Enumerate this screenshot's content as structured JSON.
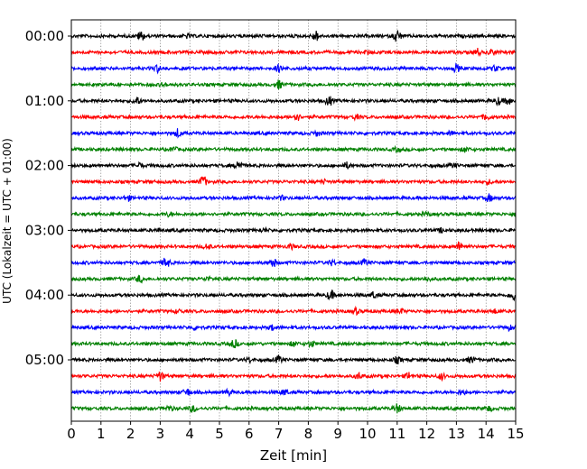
{
  "chart_data": {
    "type": "line",
    "title": "",
    "xlabel": "Zeit  [min]",
    "ylabel": "UTC (Lokalzeit = UTC + 01:00)",
    "xlim": [
      0,
      15
    ],
    "x_ticks": [
      0,
      1,
      2,
      3,
      4,
      5,
      6,
      7,
      8,
      9,
      10,
      11,
      12,
      13,
      14,
      15
    ],
    "x_tick_labels": [
      "0",
      "1",
      "2",
      "3",
      "4",
      "5",
      "6",
      "7",
      "8",
      "9",
      "10",
      "11",
      "12",
      "13",
      "14",
      "15"
    ],
    "y_tick_labels": [
      "00:00",
      "01:00",
      "02:00",
      "03:00",
      "04:00",
      "05:00"
    ],
    "grid": "vertical dotted",
    "trace_interval_min": 15,
    "trace_count": 24,
    "trace_colors": [
      "#000000",
      "#ff0000",
      "#0000ff",
      "#008000"
    ],
    "traces": [
      {
        "start": "00:00",
        "events": [
          [
            2.35,
            0.8
          ],
          [
            8.25,
            0.9
          ],
          [
            11.0,
            1.1
          ],
          [
            3.9,
            0.3
          ]
        ]
      },
      {
        "start": "00:15",
        "events": [
          [
            10.0,
            0.3
          ],
          [
            13.7,
            0.6
          ],
          [
            14.2,
            0.5
          ]
        ]
      },
      {
        "start": "00:30",
        "events": [
          [
            2.9,
            0.6
          ],
          [
            7.0,
            0.5
          ],
          [
            13.0,
            0.6
          ],
          [
            14.3,
            0.5
          ]
        ]
      },
      {
        "start": "00:45",
        "events": [
          [
            7.0,
            0.7
          ],
          [
            3.1,
            0.3
          ]
        ]
      },
      {
        "start": "01:00",
        "events": [
          [
            2.2,
            0.7
          ],
          [
            8.7,
            0.8
          ],
          [
            14.4,
            0.6
          ],
          [
            14.75,
            0.6
          ]
        ]
      },
      {
        "start": "01:15",
        "events": [
          [
            7.6,
            0.7
          ],
          [
            9.6,
            0.3
          ],
          [
            14.0,
            0.5
          ]
        ]
      },
      {
        "start": "01:30",
        "events": [
          [
            3.6,
            0.7
          ],
          [
            8.3,
            0.4
          ],
          [
            12.8,
            0.3
          ]
        ]
      },
      {
        "start": "01:45",
        "events": [
          [
            3.45,
            0.4
          ],
          [
            11.0,
            0.3
          ],
          [
            13.3,
            0.4
          ]
        ]
      },
      {
        "start": "02:00",
        "events": [
          [
            2.3,
            0.4
          ],
          [
            5.65,
            0.9
          ],
          [
            9.3,
            0.5
          ],
          [
            12.9,
            0.3
          ]
        ]
      },
      {
        "start": "02:15",
        "events": [
          [
            4.45,
            1.0
          ],
          [
            8.5,
            0.3
          ],
          [
            14.1,
            0.3
          ]
        ]
      },
      {
        "start": "02:30",
        "events": [
          [
            1.9,
            0.4
          ],
          [
            7.1,
            0.3
          ],
          [
            14.1,
            0.6
          ]
        ]
      },
      {
        "start": "02:45",
        "events": [
          [
            3.3,
            0.3
          ],
          [
            12.0,
            0.3
          ]
        ]
      },
      {
        "start": "03:00",
        "events": [
          [
            2.9,
            0.2
          ],
          [
            6.5,
            0.3
          ],
          [
            12.5,
            0.3
          ]
        ]
      },
      {
        "start": "03:15",
        "events": [
          [
            4.6,
            0.4
          ],
          [
            7.4,
            0.4
          ],
          [
            13.1,
            0.7
          ]
        ]
      },
      {
        "start": "03:30",
        "events": [
          [
            3.2,
            0.9
          ],
          [
            6.8,
            0.8
          ],
          [
            8.8,
            0.4
          ],
          [
            9.9,
            0.5
          ]
        ]
      },
      {
        "start": "03:45",
        "events": [
          [
            2.3,
            0.5
          ],
          [
            4.6,
            0.3
          ],
          [
            12.0,
            0.4
          ]
        ]
      },
      {
        "start": "04:00",
        "events": [
          [
            8.75,
            0.8
          ],
          [
            10.2,
            0.5
          ],
          [
            14.9,
            0.9
          ]
        ]
      },
      {
        "start": "04:15",
        "events": [
          [
            3.6,
            0.3
          ],
          [
            9.6,
            0.5
          ],
          [
            11.1,
            0.4
          ],
          [
            14.3,
            0.3
          ]
        ]
      },
      {
        "start": "04:30",
        "events": [
          [
            4.2,
            0.4
          ],
          [
            6.8,
            0.4
          ],
          [
            14.8,
            0.4
          ]
        ]
      },
      {
        "start": "04:45",
        "events": [
          [
            5.5,
            0.7
          ],
          [
            7.5,
            0.4
          ],
          [
            8.1,
            0.5
          ]
        ]
      },
      {
        "start": "05:00",
        "events": [
          [
            6.0,
            0.4
          ],
          [
            7.0,
            0.6
          ],
          [
            11.0,
            0.5
          ],
          [
            13.5,
            0.5
          ]
        ]
      },
      {
        "start": "05:15",
        "events": [
          [
            3.0,
            0.8
          ],
          [
            9.7,
            0.5
          ],
          [
            11.4,
            0.6
          ],
          [
            12.5,
            0.5
          ]
        ]
      },
      {
        "start": "05:30",
        "events": [
          [
            3.9,
            0.6
          ],
          [
            5.3,
            0.5
          ],
          [
            7.2,
            0.5
          ],
          [
            13.2,
            0.4
          ]
        ]
      },
      {
        "start": "05:45",
        "events": [
          [
            3.3,
            0.4
          ],
          [
            4.1,
            0.6
          ],
          [
            11.0,
            0.7
          ],
          [
            14.1,
            0.4
          ]
        ]
      }
    ]
  }
}
